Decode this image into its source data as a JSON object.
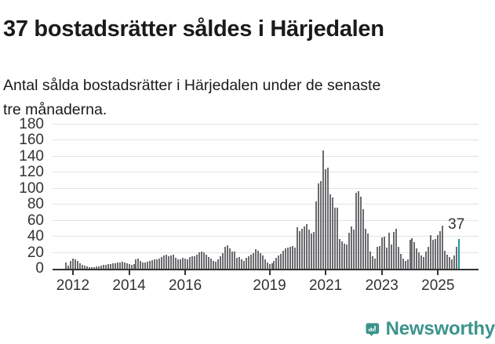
{
  "header": {
    "title": "37 bostadsrätter såldes i Härjedalen",
    "subtitle": "Antal sålda bostadsrätter i Härjedalen under de senaste\ntre månaderna."
  },
  "chart_data": {
    "type": "bar",
    "title": "37 bostadsrätter såldes i Härjedalen",
    "description": "Antal sålda bostadsrätter i Härjedalen under de senaste tre månaderna.",
    "interval": "monthly rolling 3-month totals",
    "x_start": "2011-10",
    "x_end": "2025-10",
    "ylim": [
      0,
      180
    ],
    "y_ticks": [
      0,
      20,
      40,
      60,
      80,
      100,
      120,
      140,
      160,
      180
    ],
    "x_tick_years": [
      2012,
      2014,
      2016,
      2019,
      2021,
      2023,
      2025
    ],
    "grid": true,
    "values": [
      8,
      4,
      10,
      13,
      12,
      10,
      7,
      5,
      4,
      3,
      2,
      2,
      2,
      3,
      3,
      4,
      5,
      5,
      6,
      6,
      7,
      7,
      8,
      8,
      9,
      8,
      7,
      6,
      5,
      6,
      12,
      13,
      10,
      8,
      8,
      9,
      10,
      11,
      12,
      12,
      13,
      15,
      17,
      18,
      16,
      17,
      18,
      14,
      12,
      12,
      14,
      13,
      12,
      15,
      16,
      16,
      18,
      21,
      22,
      21,
      18,
      15,
      13,
      10,
      9,
      12,
      16,
      20,
      27,
      29,
      25,
      22,
      22,
      14,
      15,
      12,
      10,
      14,
      16,
      18,
      20,
      24,
      23,
      20,
      17,
      12,
      8,
      6,
      7,
      10,
      14,
      17,
      19,
      23,
      25,
      26,
      27,
      28,
      26,
      52,
      47,
      50,
      53,
      56,
      49,
      44,
      46,
      84,
      107,
      110,
      148,
      124,
      126,
      93,
      89,
      76,
      76,
      37,
      34,
      31,
      30,
      45,
      53,
      49,
      95,
      97,
      90,
      74,
      50,
      44,
      22,
      16,
      13,
      27,
      28,
      39,
      40,
      26,
      45,
      30,
      46,
      50,
      27,
      19,
      13,
      10,
      12,
      36,
      38,
      33,
      25,
      21,
      17,
      15,
      22,
      27,
      42,
      36,
      37,
      42,
      47,
      54,
      23,
      18,
      15,
      12,
      17,
      27,
      37
    ],
    "highlight_last_bar": true,
    "highlight_value_label": "37",
    "colors": {
      "bar": "#6b6b6f",
      "highlight": "#19989b",
      "grid": "#e3e3e3",
      "axis": "#333333",
      "text": "#1a1a1a"
    },
    "legend": "none"
  },
  "footer": {
    "brand": "Newsworthy",
    "logo_icon": "newsworthy-speech-bubble-bar-chart-icon"
  }
}
